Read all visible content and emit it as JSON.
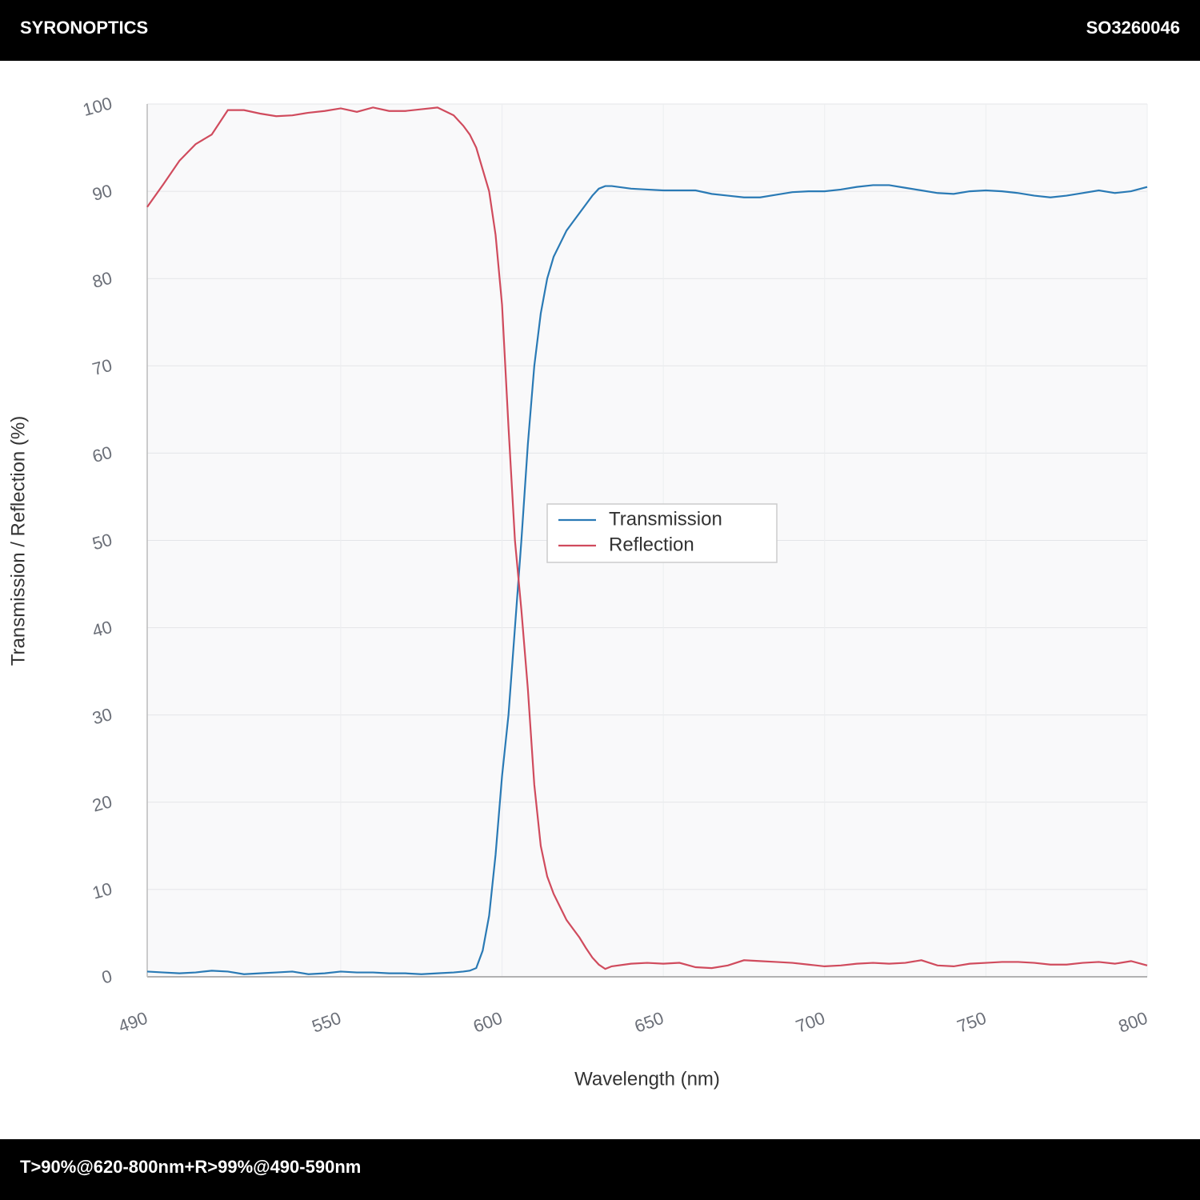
{
  "header": {
    "brand": "SYRONOPTICS",
    "code": "SO3260046"
  },
  "footer": {
    "text": "T>90%@620-800nm+R>99%@490-590nm"
  },
  "chart_data": {
    "type": "line",
    "xlabel": "Wavelength (nm)",
    "ylabel": "Transmission / Reflection (%)",
    "x": [
      490,
      495,
      500,
      505,
      510,
      515,
      520,
      525,
      530,
      535,
      540,
      545,
      550,
      555,
      560,
      565,
      570,
      575,
      580,
      585,
      588,
      590,
      592,
      594,
      596,
      598,
      600,
      602,
      604,
      606,
      608,
      610,
      612,
      614,
      616,
      618,
      620,
      622,
      624,
      626,
      628,
      630,
      632,
      634,
      640,
      645,
      650,
      655,
      660,
      665,
      670,
      675,
      680,
      685,
      690,
      695,
      700,
      705,
      710,
      715,
      720,
      725,
      730,
      735,
      740,
      745,
      750,
      755,
      760,
      765,
      770,
      775,
      780,
      785,
      790,
      795,
      800
    ],
    "series": [
      {
        "name": "Transmission",
        "color": "#2a7ab5",
        "values": [
          0.6,
          0.5,
          0.4,
          0.5,
          0.7,
          0.6,
          0.3,
          0.4,
          0.5,
          0.6,
          0.3,
          0.4,
          0.6,
          0.5,
          0.5,
          0.4,
          0.4,
          0.3,
          0.4,
          0.5,
          0.6,
          0.7,
          1,
          3,
          7,
          14,
          23,
          30,
          40,
          50,
          61,
          70,
          76,
          80,
          82.5,
          84,
          85.5,
          86.5,
          87.5,
          88.5,
          89.5,
          90.3,
          90.6,
          90.6,
          90.3,
          90.2,
          90.1,
          90.1,
          90.1,
          89.7,
          89.5,
          89.3,
          89.3,
          89.6,
          89.9,
          90.0,
          90.0,
          90.2,
          90.5,
          90.7,
          90.7,
          90.4,
          90.1,
          89.8,
          89.7,
          90.0,
          90.1,
          90.0,
          89.8,
          89.5,
          89.3,
          89.5,
          89.8,
          90.1,
          89.8,
          90.0,
          90.5
        ]
      },
      {
        "name": "Reflection",
        "color": "#d04b5d",
        "values": [
          88.2,
          90.8,
          93.5,
          95.4,
          96.5,
          99.3,
          99.3,
          98.9,
          98.6,
          98.7,
          99.0,
          99.2,
          99.5,
          99.1,
          99.6,
          99.2,
          99.2,
          99.4,
          99.6,
          98.7,
          97.5,
          96.5,
          95,
          92.5,
          90,
          85,
          77,
          63,
          50,
          42,
          33,
          22,
          15,
          11.5,
          9.5,
          8,
          6.5,
          5.5,
          4.5,
          3.3,
          2.2,
          1.4,
          0.9,
          1.2,
          1.5,
          1.6,
          1.5,
          1.6,
          1.1,
          1.0,
          1.3,
          1.9,
          1.8,
          1.7,
          1.6,
          1.4,
          1.2,
          1.3,
          1.5,
          1.6,
          1.5,
          1.6,
          1.9,
          1.3,
          1.2,
          1.5,
          1.6,
          1.7,
          1.7,
          1.6,
          1.4,
          1.4,
          1.6,
          1.7,
          1.5,
          1.8,
          1.3
        ]
      }
    ],
    "xlim": [
      490,
      800
    ],
    "xticks": [
      490,
      550,
      600,
      650,
      700,
      750,
      800
    ],
    "ylim": [
      0,
      100
    ],
    "yticks": [
      0,
      10,
      20,
      30,
      40,
      50,
      60,
      70,
      80,
      90,
      100
    ],
    "grid": true
  }
}
